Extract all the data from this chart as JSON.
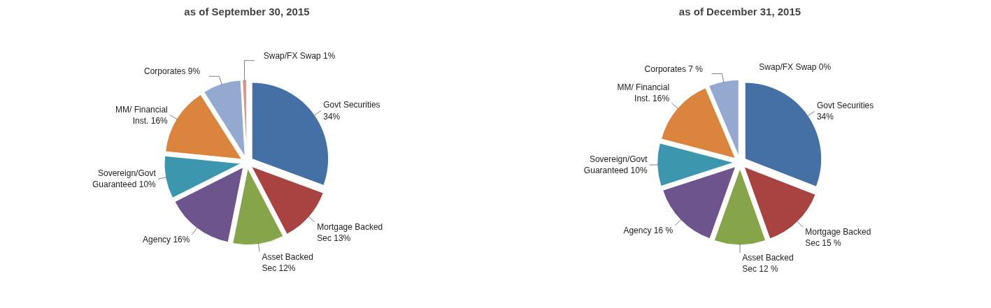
{
  "chart_data": [
    {
      "type": "pie",
      "title": "as of September 30, 2015",
      "categories": [
        "Govt Securities",
        "Mortgage Backed Sec",
        "Asset Backed Sec",
        "Agency",
        "Sovereign/Govt Guaranteed",
        "MM/ Financial Inst.",
        "Corporates",
        "Swap/FX Swap"
      ],
      "values": [
        34,
        13,
        12,
        16,
        10,
        16,
        9,
        1
      ],
      "value_labels": [
        "34%",
        "13%",
        "12%",
        "16%",
        "10%",
        "16%",
        "9%",
        "1%"
      ],
      "colors": [
        "#4470a6",
        "#a84341",
        "#86a44a",
        "#6e548d",
        "#3c96ae",
        "#db843d",
        "#93a9cf",
        "#d99694"
      ]
    },
    {
      "type": "pie",
      "title": "as of December 31, 2015",
      "categories": [
        "Govt Securities",
        "Mortgage Backed Sec",
        "Asset Backed Sec",
        "Agency",
        "Sovereign/Govt Guaranteed",
        "MM/ Financial Inst.",
        "Corporates",
        "Swap/FX Swap"
      ],
      "values": [
        34,
        15,
        12,
        16,
        10,
        16,
        7,
        0
      ],
      "value_labels": [
        "34%",
        "15 %",
        "12 %",
        "16 %",
        "10%",
        "16%",
        "7 %",
        "0%"
      ],
      "colors": [
        "#4470a6",
        "#a84341",
        "#86a44a",
        "#6e548d",
        "#3c96ae",
        "#db843d",
        "#93a9cf",
        "#d99694"
      ]
    }
  ]
}
